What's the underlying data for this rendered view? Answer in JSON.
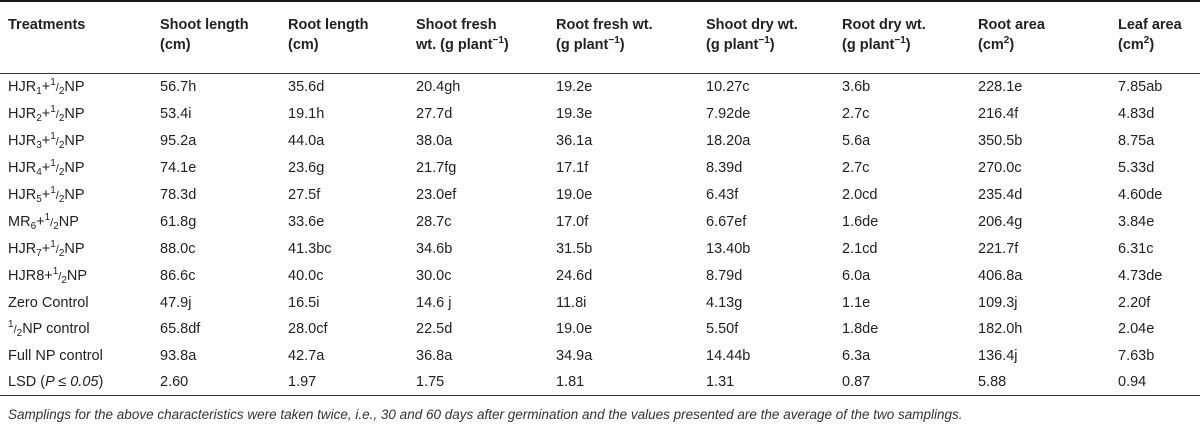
{
  "table": {
    "headers": [
      {
        "line1": "Treatments",
        "line2": ""
      },
      {
        "line1": "Shoot length",
        "line2": "(cm)"
      },
      {
        "line1": "Root length",
        "line2": "(cm)"
      },
      {
        "line1": "Shoot fresh",
        "line2": "wt. (g plant",
        "sup": "−1",
        "tail": ")"
      },
      {
        "line1": "Root fresh wt.",
        "line2": "(g plant",
        "sup": "−1",
        "tail": ")"
      },
      {
        "line1": "Shoot dry wt.",
        "line2": "(g plant",
        "sup": "−1",
        "tail": ")"
      },
      {
        "line1": "Root dry wt.",
        "line2": "(g plant",
        "sup": "−1",
        "tail": ")"
      },
      {
        "line1": "Root area",
        "line2": "(cm",
        "sup": "2",
        "tail": ")"
      },
      {
        "line1": "Leaf area",
        "line2": "(cm",
        "sup": "2",
        "tail": ")"
      }
    ],
    "rows": [
      {
        "t_prefix": "HJR",
        "t_sub": "1",
        "t_suffix": "+",
        "t_frac": "1/2",
        "t_end": "NP",
        "cells": [
          "56.7h",
          "35.6d",
          "20.4gh",
          "19.2e",
          "10.27c",
          "3.6b",
          "228.1e",
          "7.85ab"
        ]
      },
      {
        "t_prefix": "HJR",
        "t_sub": "2",
        "t_suffix": "+",
        "t_frac": "1/2",
        "t_end": "NP",
        "cells": [
          "53.4i",
          "19.1h",
          "27.7d",
          "19.3e",
          "7.92de",
          "2.7c",
          "216.4f",
          "4.83d"
        ]
      },
      {
        "t_prefix": "HJR",
        "t_sub": "3",
        "t_suffix": "+",
        "t_frac": "1/2",
        "t_end": "NP",
        "cells": [
          "95.2a",
          "44.0a",
          "38.0a",
          "36.1a",
          "18.20a",
          "5.6a",
          "350.5b",
          "8.75a"
        ]
      },
      {
        "t_prefix": "HJR",
        "t_sub": "4",
        "t_suffix": "+",
        "t_frac": "1/2",
        "t_end": "NP",
        "cells": [
          "74.1e",
          "23.6g",
          "21.7fg",
          "17.1f",
          "8.39d",
          "2.7c",
          "270.0c",
          "5.33d"
        ]
      },
      {
        "t_prefix": "HJR",
        "t_sub": "5",
        "t_suffix": "+",
        "t_frac": "1/2",
        "t_end": "NP",
        "cells": [
          "78.3d",
          "27.5f",
          "23.0ef",
          "19.0e",
          "6.43f",
          "2.0cd",
          "235.4d",
          "4.60de"
        ]
      },
      {
        "t_prefix": "MR",
        "t_sub": "6",
        "t_suffix": "+",
        "t_frac": "1/2",
        "t_end": "NP",
        "cells": [
          "61.8g",
          "33.6e",
          "28.7c",
          "17.0f",
          "6.67ef",
          "1.6de",
          "206.4g",
          "3.84e"
        ]
      },
      {
        "t_prefix": "HJR",
        "t_sub": "7",
        "t_suffix": "+",
        "t_frac": "1/2",
        "t_end": "NP",
        "cells": [
          "88.0c",
          "41.3bc",
          "34.6b",
          "31.5b",
          "13.40b",
          "2.1cd",
          "221.7f",
          "6.31c"
        ]
      },
      {
        "t_prefix": "HJR8",
        "t_sub": "",
        "t_suffix": "+",
        "t_frac": "1/2",
        "t_end": "NP",
        "cells": [
          "86.6c",
          "40.0c",
          "30.0c",
          "24.6d",
          "8.79d",
          "6.0a",
          "406.8a",
          "4.73de"
        ]
      },
      {
        "t_prefix": "Zero Control",
        "t_sub": "",
        "t_suffix": "",
        "t_frac": "",
        "t_end": "",
        "cells": [
          "47.9j",
          "16.5i",
          "14.6 j",
          "11.8i",
          "4.13g",
          "1.1e",
          "109.3j",
          "2.20f"
        ]
      },
      {
        "t_prefix": "",
        "t_sub": "",
        "t_suffix": "",
        "t_frac": "1/2",
        "t_end": "NP control",
        "cells": [
          "65.8df",
          "28.0cf",
          "22.5d",
          "19.0e",
          "5.50f",
          "1.8de",
          "182.0h",
          "2.04e"
        ]
      },
      {
        "t_prefix": "Full NP control",
        "t_sub": "",
        "t_suffix": "",
        "t_frac": "",
        "t_end": "",
        "cells": [
          "93.8a",
          "42.7a",
          "36.8a",
          "34.9a",
          "14.44b",
          "6.3a",
          "136.4j",
          "7.63b"
        ]
      }
    ],
    "lsd_row": {
      "label": "LSD (",
      "label_italic": "P ≤ 0.05",
      "label_end": ")",
      "cells": [
        "2.60",
        "1.97",
        "1.75",
        "1.81",
        "1.31",
        "0.87",
        "5.88",
        "0.94"
      ]
    }
  },
  "footnote": "Samplings for the above characteristics were taken twice, i.e., 30 and 60 days after germination and the values presented are the average of the two samplings."
}
